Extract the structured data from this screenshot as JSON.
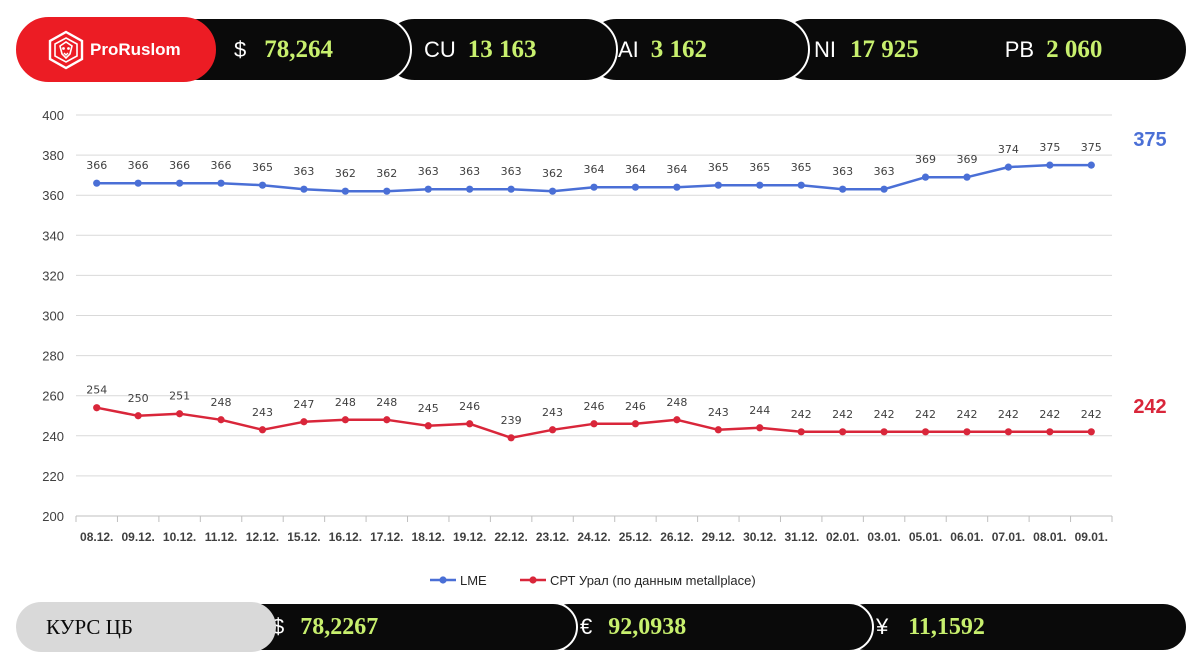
{
  "header": {
    "brand": {
      "name": "ProRuslom",
      "logo_icon": "lion-shield-icon"
    },
    "tickers": [
      {
        "symbol": "$",
        "value": "78,264"
      },
      {
        "symbol": "CU",
        "value": "13 163"
      },
      {
        "symbol": "AI",
        "value": "3 162"
      },
      {
        "symbol": "NI",
        "value": "17 925"
      },
      {
        "symbol": "PB",
        "value": "2 060"
      }
    ]
  },
  "chart_data": {
    "type": "line",
    "categories": [
      "08.12.",
      "09.12.",
      "10.12.",
      "11.12.",
      "12.12.",
      "15.12.",
      "16.12.",
      "17.12.",
      "18.12.",
      "19.12.",
      "22.12.",
      "23.12.",
      "24.12.",
      "25.12.",
      "26.12.",
      "29.12.",
      "30.12.",
      "31.12.",
      "02.01.",
      "03.01.",
      "05.01.",
      "06.01.",
      "07.01.",
      "08.01.",
      "09.01."
    ],
    "series": [
      {
        "name": "LME",
        "color": "#4a6fd6",
        "values": [
          366,
          366,
          366,
          366,
          365,
          363,
          362,
          362,
          363,
          363,
          363,
          362,
          364,
          364,
          364,
          365,
          365,
          365,
          363,
          363,
          369,
          369,
          374,
          375,
          375
        ],
        "last_value": "375"
      },
      {
        "name": "СРТ  Урал (по данным metallplace)",
        "color": "#d9263a",
        "values": [
          254,
          250,
          251,
          248,
          243,
          247,
          248,
          248,
          245,
          246,
          239,
          243,
          246,
          246,
          248,
          243,
          244,
          242,
          242,
          242,
          242,
          242,
          242,
          242,
          242
        ],
        "last_value": "242"
      }
    ],
    "yticks": [
      200,
      220,
      240,
      260,
      280,
      300,
      320,
      340,
      360,
      380,
      400
    ],
    "ylim": [
      200,
      400
    ],
    "grid": true,
    "legend_position": "bottom"
  },
  "footer": {
    "title": "КУРС ЦБ",
    "rates": [
      {
        "symbol": "$",
        "value": "78,2267"
      },
      {
        "symbol": "€",
        "value": "92,0938"
      },
      {
        "symbol": "¥",
        "value": "11,1592"
      }
    ]
  }
}
